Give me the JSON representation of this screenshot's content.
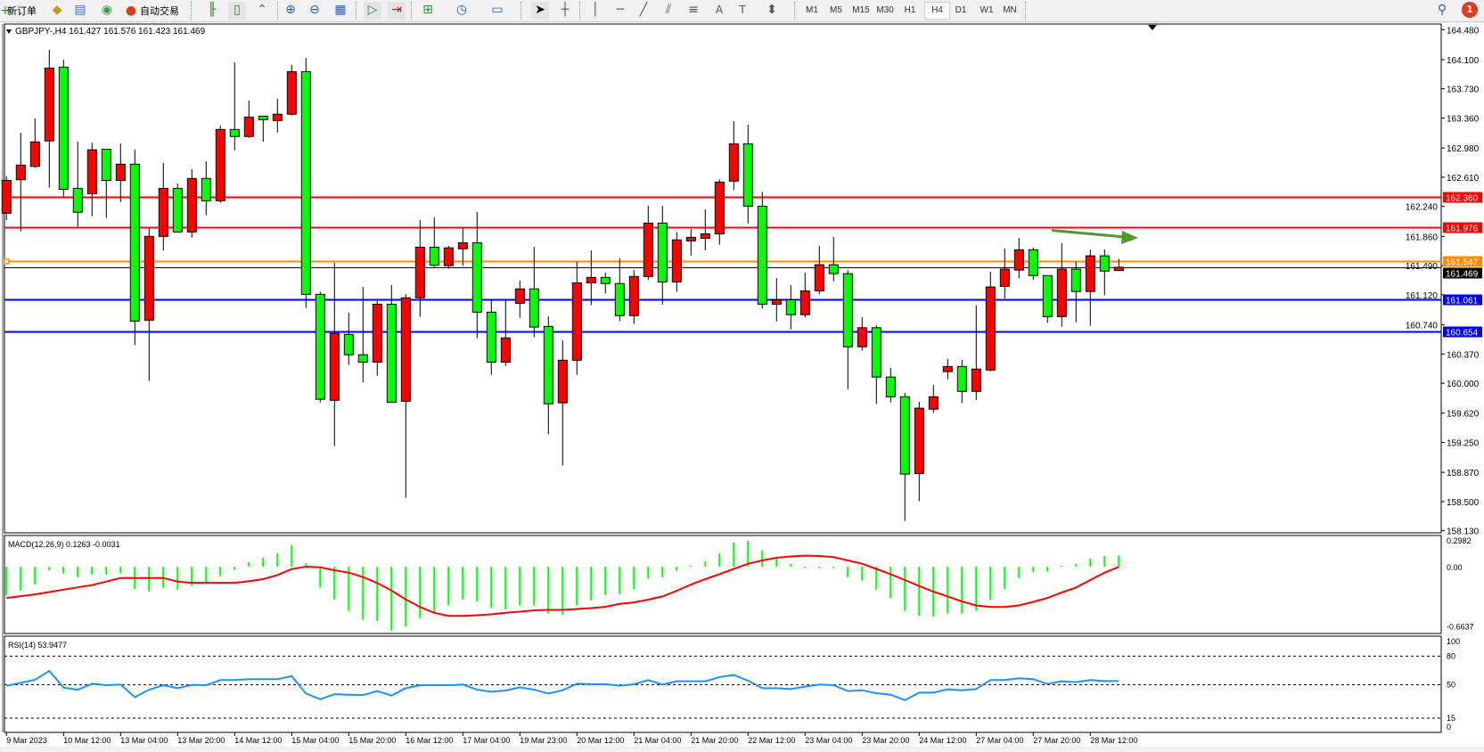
{
  "toolbar": {
    "new_order_label": "新订单",
    "auto_trading_label": "自动交易",
    "icons": [
      "new-order-icon",
      "market-watch-icon",
      "navigator-icon",
      "signals-icon",
      "auto-trading-icon",
      "bar-chart-icon",
      "candlestick-icon",
      "line-chart-icon",
      "zoom-in-icon",
      "zoom-out-icon",
      "tile-windows-icon",
      "auto-scroll-icon",
      "chart-shift-icon",
      "indicators-icon",
      "periods-icon",
      "templates-icon",
      "cursor-icon",
      "crosshair-icon",
      "vertical-line-icon",
      "horizontal-line-icon",
      "trendline-icon",
      "equidistant-channel-icon",
      "fibonacci-icon",
      "text-icon",
      "text-label-icon",
      "arrows-icon",
      "search-icon",
      "notifications-icon"
    ],
    "timeframes": [
      "M1",
      "M5",
      "M15",
      "M30",
      "H1",
      "H4",
      "D1",
      "W1",
      "MN"
    ],
    "active_timeframe": "H4",
    "notification_count": "1"
  },
  "chart": {
    "legend": "GBPJPY-,H4  161.427 161.576 161.423 161.469",
    "symbol": "GBPJPY-",
    "timeframe": "H4",
    "ohlc": {
      "open": 161.427,
      "high": 161.576,
      "low": 161.423,
      "close": 161.469
    },
    "colors": {
      "bull": "#ff0000",
      "bear": "#00ff00",
      "wick": "#000000",
      "macd_hist": "#00ff00",
      "macd_signal": "#ff0000",
      "rsi": "#1e90ff",
      "arrow": "#4f9a2f"
    },
    "price_ticks": [
      "164.480",
      "164.100",
      "163.730",
      "163.360",
      "162.980",
      "162.610",
      "162.240",
      "161.860",
      "161.490",
      "161.120",
      "160.740",
      "160.370",
      "160.000",
      "159.620",
      "159.250",
      "158.870",
      "158.500",
      "158.130"
    ],
    "levels": [
      {
        "price": 162.36,
        "label": "162.360",
        "color": "#ff0000"
      },
      {
        "price": 161.976,
        "label": "161.976",
        "color": "#ff0000"
      },
      {
        "price": 161.547,
        "label": "161.547",
        "color": "#ff8c00"
      },
      {
        "price": 161.469,
        "label": "161.469",
        "color": "#000000",
        "bid": true
      },
      {
        "price": 161.061,
        "label": "161.061",
        "color": "#0000ff"
      },
      {
        "price": 160.654,
        "label": "160.654",
        "color": "#0000ff"
      }
    ],
    "date_labels": [
      "9 Mar 2023",
      "10 Mar 12:00",
      "13 Mar 04:00",
      "13 Mar 20:00",
      "14 Mar 12:00",
      "15 Mar 04:00",
      "15 Mar 20:00",
      "16 Mar 12:00",
      "17 Mar 04:00",
      "19 Mar 23:00",
      "20 Mar 12:00",
      "21 Mar 04:00",
      "21 Mar 20:00",
      "22 Mar 12:00",
      "23 Mar 04:00",
      "23 Mar 20:00",
      "24 Mar 12:00",
      "27 Mar 04:00",
      "27 Mar 20:00",
      "28 Mar 12:00"
    ]
  },
  "chart_data": {
    "type": "candlestick",
    "ylim": [
      158.1,
      164.54
    ],
    "candles_ohlc": [
      [
        162.154,
        162.622,
        162.066,
        162.569
      ],
      [
        162.578,
        163.174,
        161.924,
        162.763
      ],
      [
        162.747,
        163.356,
        162.727,
        163.057
      ],
      [
        163.07,
        164.223,
        162.477,
        163.993
      ],
      [
        164.005,
        164.098,
        162.368,
        162.457
      ],
      [
        162.469,
        163.061,
        161.985,
        162.166
      ],
      [
        162.4,
        163.049,
        162.114,
        162.957
      ],
      [
        162.965,
        162.965,
        162.094,
        162.569
      ],
      [
        162.569,
        163.037,
        162.295,
        162.775
      ],
      [
        162.775,
        162.961,
        160.481,
        160.787
      ],
      [
        160.799,
        161.965,
        160.029,
        161.86
      ],
      [
        161.86,
        162.791,
        161.682,
        162.469
      ],
      [
        162.469,
        162.529,
        161.916,
        161.916
      ],
      [
        161.916,
        162.711,
        161.844,
        162.594
      ],
      [
        162.594,
        162.811,
        162.126,
        162.312
      ],
      [
        162.312,
        163.263,
        162.287,
        163.215
      ],
      [
        163.215,
        164.065,
        162.952,
        163.126
      ],
      [
        163.126,
        163.582,
        163.11,
        163.372
      ],
      [
        163.384,
        163.384,
        163.061,
        163.34
      ],
      [
        163.328,
        163.602,
        163.174,
        163.408
      ],
      [
        163.408,
        164.033,
        163.392,
        163.948
      ],
      [
        163.948,
        164.122,
        160.953,
        161.126
      ],
      [
        161.126,
        161.158,
        159.755,
        159.796
      ],
      [
        159.783,
        161.525,
        159.203,
        160.63
      ],
      [
        160.618,
        160.892,
        160.231,
        160.36
      ],
      [
        160.36,
        161.219,
        160.009,
        160.267
      ],
      [
        160.267,
        161.041,
        160.094,
        161.001
      ],
      [
        161.001,
        161.243,
        159.759,
        159.759
      ],
      [
        159.771,
        161.126,
        158.55,
        161.082
      ],
      [
        161.082,
        162.066,
        160.84,
        161.723
      ],
      [
        161.723,
        162.102,
        161.473,
        161.493
      ],
      [
        161.489,
        161.739,
        161.449,
        161.715
      ],
      [
        161.703,
        161.969,
        161.485,
        161.779
      ],
      [
        161.779,
        162.17,
        160.57,
        160.9
      ],
      [
        160.9,
        161.053,
        160.106,
        160.267
      ],
      [
        160.267,
        161.053,
        160.219,
        160.574
      ],
      [
        161.013,
        161.299,
        160.828,
        161.195
      ],
      [
        161.195,
        161.727,
        160.582,
        160.711
      ],
      [
        160.719,
        160.848,
        159.352,
        159.739
      ],
      [
        159.751,
        160.541,
        158.957,
        160.291
      ],
      [
        160.291,
        161.537,
        160.106,
        161.271
      ],
      [
        161.271,
        161.682,
        160.989,
        161.34
      ],
      [
        161.34,
        161.4,
        161.138,
        161.263
      ],
      [
        161.263,
        161.582,
        160.787,
        160.856
      ],
      [
        160.856,
        161.432,
        160.751,
        161.352
      ],
      [
        161.352,
        162.247,
        161.307,
        162.029
      ],
      [
        162.029,
        162.247,
        160.997,
        161.283
      ],
      [
        161.283,
        161.916,
        161.158,
        161.816
      ],
      [
        161.803,
        161.953,
        161.618,
        161.848
      ],
      [
        161.836,
        162.203,
        161.686,
        161.892
      ],
      [
        161.892,
        162.582,
        161.755,
        162.549
      ],
      [
        162.561,
        163.32,
        162.445,
        163.033
      ],
      [
        163.033,
        163.275,
        162.025,
        162.243
      ],
      [
        162.243,
        162.424,
        160.945,
        161.001
      ],
      [
        161.001,
        161.332,
        160.783,
        161.057
      ],
      [
        161.057,
        161.243,
        160.683,
        160.868
      ],
      [
        160.868,
        161.4,
        160.832,
        161.17
      ],
      [
        161.17,
        161.739,
        161.126,
        161.501
      ],
      [
        161.501,
        161.852,
        161.291,
        161.388
      ],
      [
        161.388,
        161.432,
        159.925,
        160.461
      ],
      [
        160.461,
        160.836,
        160.412,
        160.703
      ],
      [
        160.703,
        160.735,
        159.735,
        160.078
      ],
      [
        160.078,
        160.195,
        159.755,
        159.828
      ],
      [
        159.828,
        159.876,
        158.255,
        158.848
      ],
      [
        158.856,
        159.763,
        158.505,
        159.683
      ],
      [
        159.671,
        159.977,
        159.622,
        159.828
      ],
      [
        160.146,
        160.308,
        160.049,
        160.211
      ],
      [
        160.211,
        160.296,
        159.747,
        159.896
      ],
      [
        159.896,
        160.985,
        159.787,
        160.179
      ],
      [
        160.167,
        161.412,
        160.15,
        161.219
      ],
      [
        161.227,
        161.707,
        161.074,
        161.445
      ],
      [
        161.433,
        161.84,
        161.328,
        161.691
      ],
      [
        161.691,
        161.719,
        161.312,
        161.364
      ],
      [
        161.364,
        161.364,
        160.763,
        160.844
      ],
      [
        160.844,
        161.775,
        160.715,
        161.445
      ],
      [
        161.445,
        161.537,
        160.771,
        161.162
      ],
      [
        161.162,
        161.695,
        160.727,
        161.614
      ],
      [
        161.614,
        161.695,
        161.114,
        161.421
      ],
      [
        161.427,
        161.576,
        161.423,
        161.469
      ]
    ],
    "macd": {
      "label": "MACD(12,26,9) 0.1263 -0.0031",
      "ylim": [
        -0.6637,
        0.2982
      ],
      "tick_labels": [
        "0.2982",
        "0.00",
        "-0.6637"
      ],
      "histogram": [
        -0.318,
        -0.268,
        -0.201,
        -0.043,
        -0.077,
        -0.117,
        -0.09,
        -0.09,
        -0.077,
        -0.251,
        -0.278,
        -0.237,
        -0.258,
        -0.217,
        -0.194,
        -0.107,
        -0.037,
        0.05,
        0.1,
        0.15,
        0.24,
        0.04,
        -0.234,
        -0.368,
        -0.495,
        -0.595,
        -0.609,
        -0.719,
        -0.669,
        -0.579,
        -0.518,
        -0.435,
        -0.368,
        -0.391,
        -0.462,
        -0.478,
        -0.435,
        -0.435,
        -0.528,
        -0.538,
        -0.435,
        -0.378,
        -0.318,
        -0.308,
        -0.251,
        -0.134,
        -0.12,
        -0.047,
        0.01,
        0.06,
        0.15,
        0.268,
        0.291,
        0.18,
        0.09,
        0.033,
        -0.017,
        -0.017,
        -0.017,
        -0.117,
        -0.157,
        -0.258,
        -0.351,
        -0.495,
        -0.552,
        -0.559,
        -0.528,
        -0.528,
        -0.495,
        -0.375,
        -0.251,
        -0.127,
        -0.06,
        -0.057,
        0.01,
        0.033,
        0.09,
        0.117,
        0.126
      ],
      "signal": [
        -0.351,
        -0.331,
        -0.311,
        -0.285,
        -0.258,
        -0.232,
        -0.207,
        -0.167,
        -0.127,
        -0.127,
        -0.127,
        -0.127,
        -0.167,
        -0.181,
        -0.181,
        -0.181,
        -0.181,
        -0.164,
        -0.14,
        -0.094,
        -0.027,
        0.0,
        -0.007,
        -0.04,
        -0.067,
        -0.117,
        -0.184,
        -0.268,
        -0.368,
        -0.452,
        -0.518,
        -0.552,
        -0.552,
        -0.545,
        -0.535,
        -0.518,
        -0.505,
        -0.49,
        -0.485,
        -0.485,
        -0.475,
        -0.465,
        -0.45,
        -0.418,
        -0.401,
        -0.37,
        -0.334,
        -0.27,
        -0.201,
        -0.14,
        -0.084,
        -0.025,
        0.033,
        0.07,
        0.1,
        0.115,
        0.124,
        0.12,
        0.107,
        0.07,
        0.033,
        -0.025,
        -0.084,
        -0.15,
        -0.217,
        -0.28,
        -0.334,
        -0.39,
        -0.435,
        -0.452,
        -0.452,
        -0.435,
        -0.395,
        -0.351,
        -0.29,
        -0.234,
        -0.15,
        -0.067,
        -0.003
      ]
    },
    "rsi": {
      "label": "RSI(14) 53.9477",
      "ylim": [
        0,
        100
      ],
      "levels": [
        80,
        50,
        15
      ],
      "tick_labels": [
        "100",
        "80",
        "50",
        "15",
        "0"
      ],
      "values": [
        48.9,
        52.0,
        55.2,
        64.6,
        47.0,
        44.8,
        51.0,
        49.5,
        50.2,
        37.0,
        44.8,
        49.5,
        46.4,
        49.9,
        49.5,
        54.9,
        54.9,
        55.8,
        55.8,
        55.8,
        59.0,
        40.8,
        34.8,
        40.1,
        39.5,
        39.2,
        43.3,
        38.6,
        46.4,
        49.5,
        49.5,
        49.5,
        50.2,
        44.8,
        42.6,
        43.9,
        47.3,
        44.8,
        40.8,
        44.2,
        51.1,
        50.6,
        50.6,
        48.9,
        50.5,
        54.9,
        50.2,
        53.6,
        53.6,
        53.6,
        58.0,
        60.2,
        54.3,
        46.4,
        46.4,
        45.5,
        48.0,
        50.2,
        49.5,
        43.3,
        44.2,
        41.1,
        39.5,
        33.8,
        41.7,
        41.7,
        45.2,
        44.2,
        45.5,
        54.9,
        54.9,
        56.8,
        55.8,
        50.8,
        53.6,
        52.7,
        54.9,
        53.9,
        53.9
      ]
    }
  }
}
